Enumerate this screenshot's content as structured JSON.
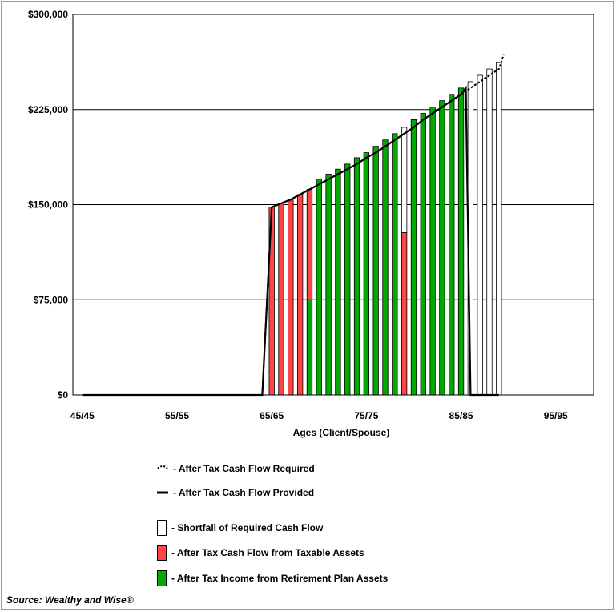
{
  "chart_data": {
    "type": "bar",
    "xlabel": "Ages (Client/Spouse)",
    "ylabel": "",
    "ylim": [
      0,
      300000
    ],
    "xlim": [
      44,
      99
    ],
    "y_ticks": [
      "$0",
      "$75,000",
      "$150,000",
      "$225,000",
      "$300,000"
    ],
    "y_tick_values": [
      0,
      75000,
      150000,
      225000,
      300000
    ],
    "x_ticks": [
      "45/45",
      "55/55",
      "65/65",
      "75/75",
      "85/85",
      "95/95"
    ],
    "x_tick_values": [
      45,
      55,
      65,
      75,
      85,
      95
    ],
    "grid": "horizontal",
    "stacked": true,
    "categories": [
      65,
      66,
      67,
      68,
      69,
      70,
      71,
      72,
      73,
      74,
      75,
      76,
      77,
      78,
      79,
      80,
      81,
      82,
      83,
      84,
      85,
      86,
      87,
      88,
      89
    ],
    "series": [
      {
        "name": "After Tax Income from Retirement Plan Assets",
        "color": "#00aa00",
        "values": [
          0,
          0,
          0,
          0,
          75000,
          170000,
          174000,
          178000,
          182000,
          187000,
          191000,
          196000,
          201000,
          206000,
          0,
          217000,
          222000,
          227000,
          232000,
          237000,
          242000,
          0,
          0,
          0,
          0
        ]
      },
      {
        "name": "After Tax Cash Flow from Taxable Assets",
        "color": "#ff4444",
        "values": [
          148000,
          151000,
          154000,
          158000,
          87000,
          0,
          0,
          0,
          0,
          0,
          0,
          0,
          0,
          0,
          128000,
          0,
          0,
          0,
          0,
          0,
          0,
          0,
          0,
          0,
          0
        ]
      },
      {
        "name": "Shortfall of Required Cash Flow",
        "color": "#ffffff",
        "values": [
          0,
          0,
          0,
          0,
          0,
          0,
          0,
          0,
          0,
          0,
          0,
          0,
          0,
          0,
          83000,
          0,
          0,
          0,
          0,
          0,
          0,
          247000,
          252000,
          257000,
          262000
        ]
      }
    ],
    "required_line": {
      "name": "After Tax Cash Flow Required",
      "x": [
        45,
        64,
        65,
        66,
        67,
        68,
        69,
        70,
        71,
        72,
        73,
        74,
        75,
        76,
        77,
        78,
        79,
        80,
        81,
        82,
        83,
        84,
        85,
        86,
        87,
        88,
        89,
        89.5
      ],
      "y": [
        0,
        0,
        148000,
        151000,
        154000,
        158000,
        162000,
        166000,
        170000,
        174000,
        178000,
        182000,
        187000,
        191000,
        196000,
        201000,
        206000,
        211000,
        217000,
        222000,
        227000,
        232000,
        237000,
        242000,
        247000,
        252000,
        257000,
        268000
      ]
    },
    "provided_line": {
      "name": "After Tax Cash Flow Provided",
      "x": [
        45,
        64,
        65,
        66,
        67,
        68,
        69,
        70,
        71,
        72,
        73,
        74,
        75,
        76,
        77,
        78,
        79,
        80,
        81,
        82,
        83,
        84,
        85,
        85.5,
        86,
        89
      ],
      "y": [
        0,
        0,
        148000,
        151000,
        154000,
        158000,
        162000,
        166000,
        170000,
        174000,
        178000,
        182000,
        187000,
        191000,
        196000,
        201000,
        206000,
        211000,
        217000,
        222000,
        227000,
        232000,
        237000,
        242000,
        0,
        0
      ]
    }
  },
  "legend": {
    "required": "- After Tax Cash Flow Required",
    "provided": "- After Tax Cash Flow Provided",
    "shortfall": "- Shortfall of Required Cash Flow",
    "taxable": "- After Tax Cash Flow from Taxable Assets",
    "retirement": "- After Tax Income from Retirement Plan Assets"
  },
  "colors": {
    "retirement": "#00aa00",
    "taxable": "#ff4444",
    "shortfall": "#ffffff",
    "frame": "#7aa3c8"
  },
  "source": "Source: Wealthy and Wise®"
}
